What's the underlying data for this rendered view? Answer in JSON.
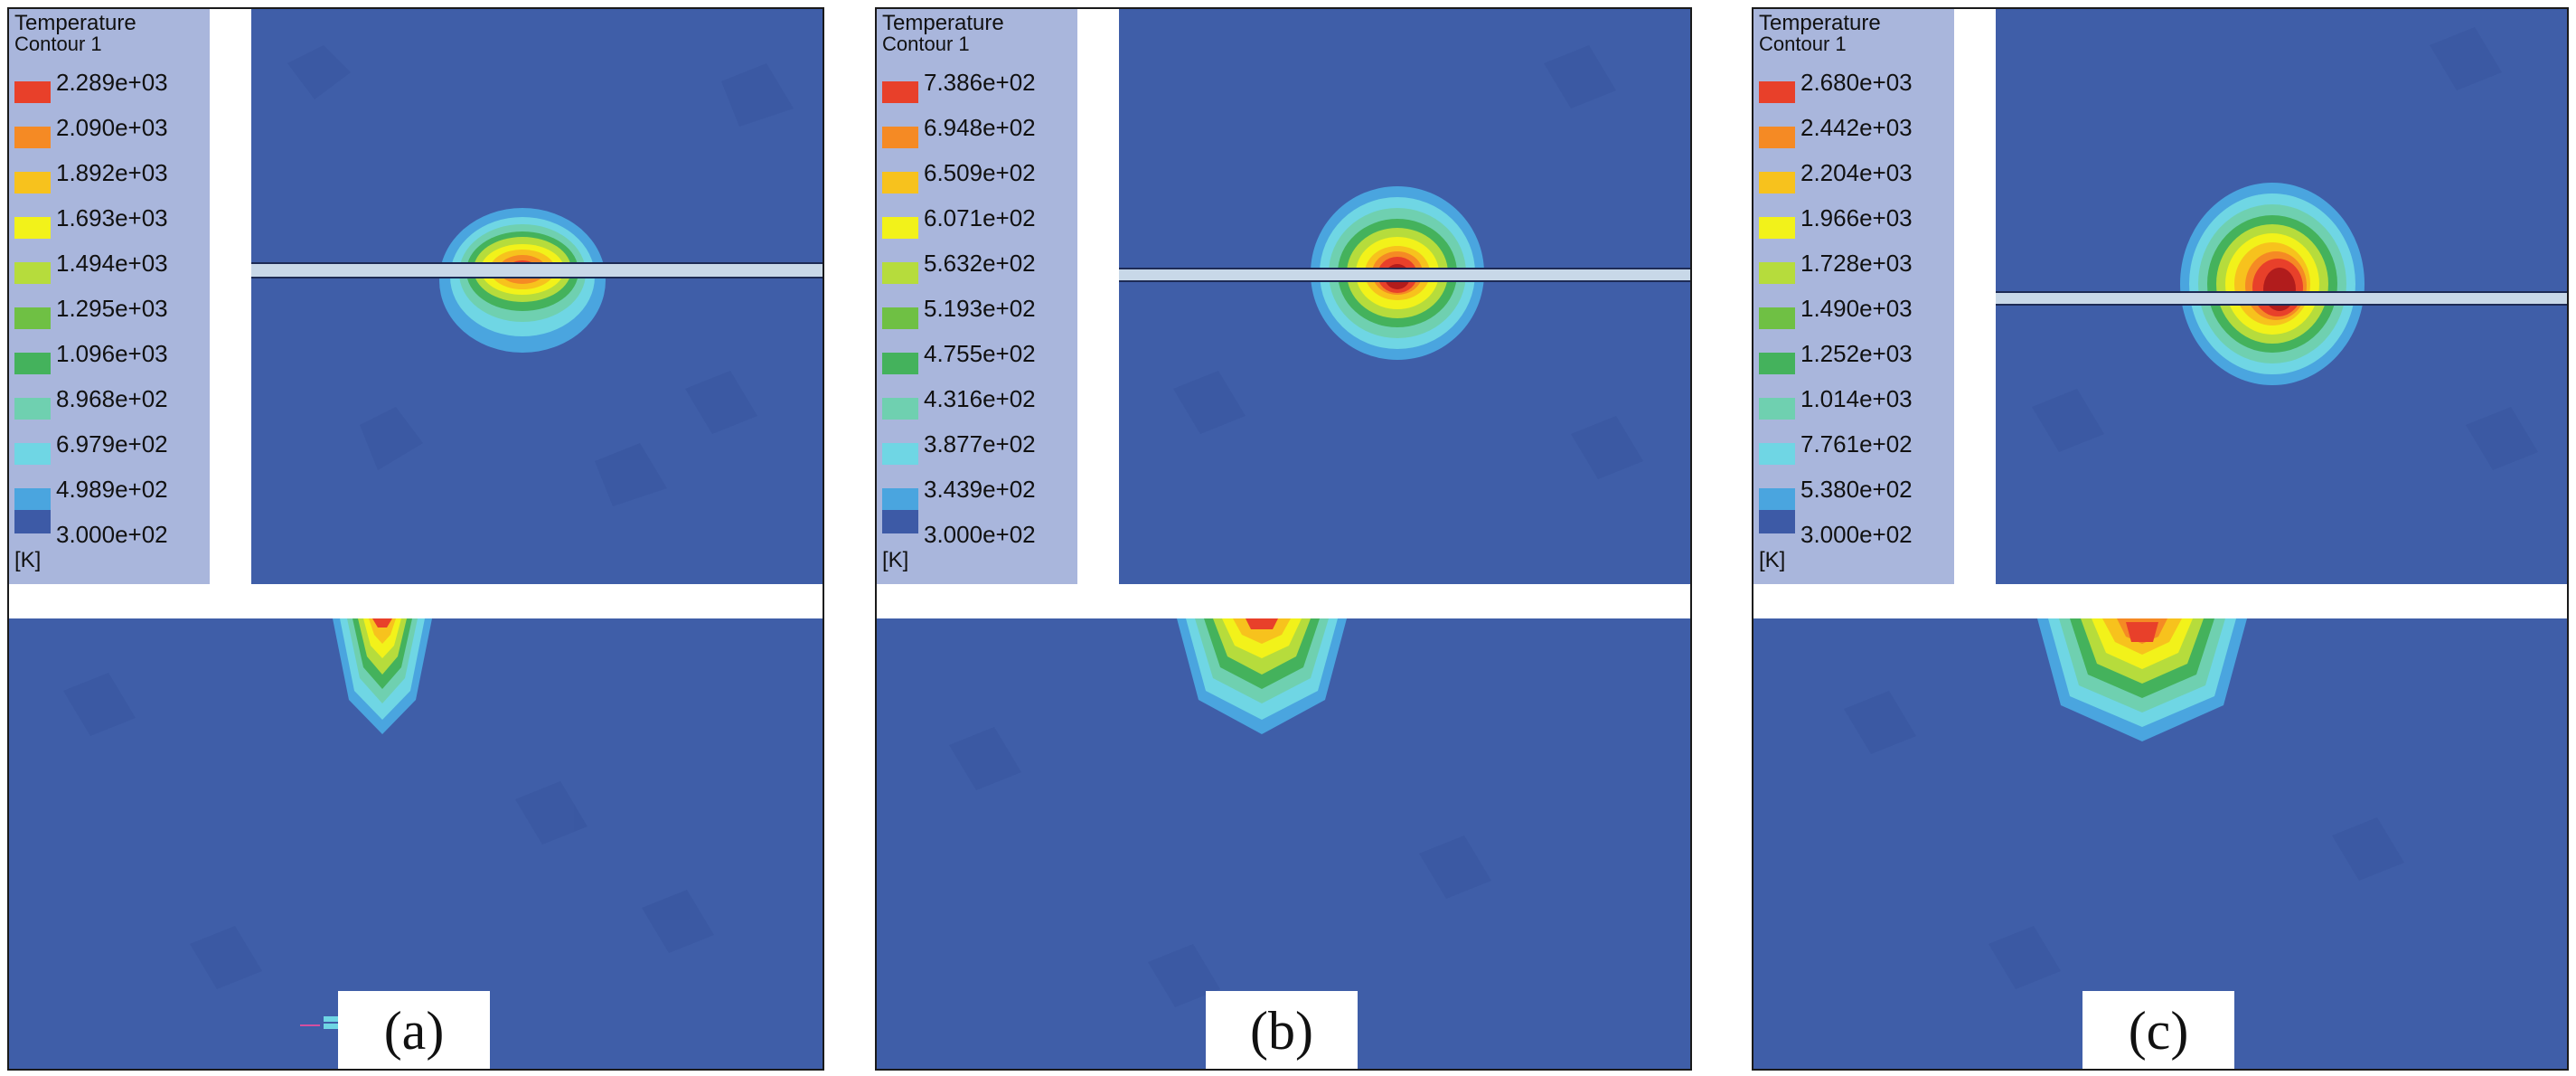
{
  "panels": [
    {
      "label": "(a)",
      "legend": {
        "title": "Temperature",
        "subtitle": "Contour 1",
        "levels": [
          "2.289e+03",
          "2.090e+03",
          "1.892e+03",
          "1.693e+03",
          "1.494e+03",
          "1.295e+03",
          "1.096e+03",
          "8.968e+02",
          "6.979e+02",
          "4.989e+02",
          "3.000e+02"
        ],
        "units": "[K]"
      }
    },
    {
      "label": "(b)",
      "legend": {
        "title": "Temperature",
        "subtitle": "Contour 1",
        "levels": [
          "7.386e+02",
          "6.948e+02",
          "6.509e+02",
          "6.071e+02",
          "5.632e+02",
          "5.193e+02",
          "4.755e+02",
          "4.316e+02",
          "3.877e+02",
          "3.439e+02",
          "3.000e+02"
        ],
        "units": "[K]"
      }
    },
    {
      "label": "(c)",
      "legend": {
        "title": "Temperature",
        "subtitle": "Contour 1",
        "levels": [
          "2.680e+03",
          "2.442e+03",
          "2.204e+03",
          "1.966e+03",
          "1.728e+03",
          "1.490e+03",
          "1.252e+03",
          "1.014e+03",
          "7.761e+02",
          "5.380e+02",
          "3.000e+02"
        ],
        "units": "[K]"
      }
    }
  ],
  "colors": {
    "background": "#3f5ea8",
    "legend_bg": "#a9b6dc",
    "scale": [
      "#e8402a",
      "#f58a24",
      "#f7c21d",
      "#f2f21a",
      "#b6dc3c",
      "#6fc044",
      "#44b25c",
      "#6fd0b0",
      "#6fd6e4",
      "#4aa5df",
      "#3d5aa6"
    ],
    "hot_core": "#b11c1c",
    "wire": "#c8d8e8"
  }
}
